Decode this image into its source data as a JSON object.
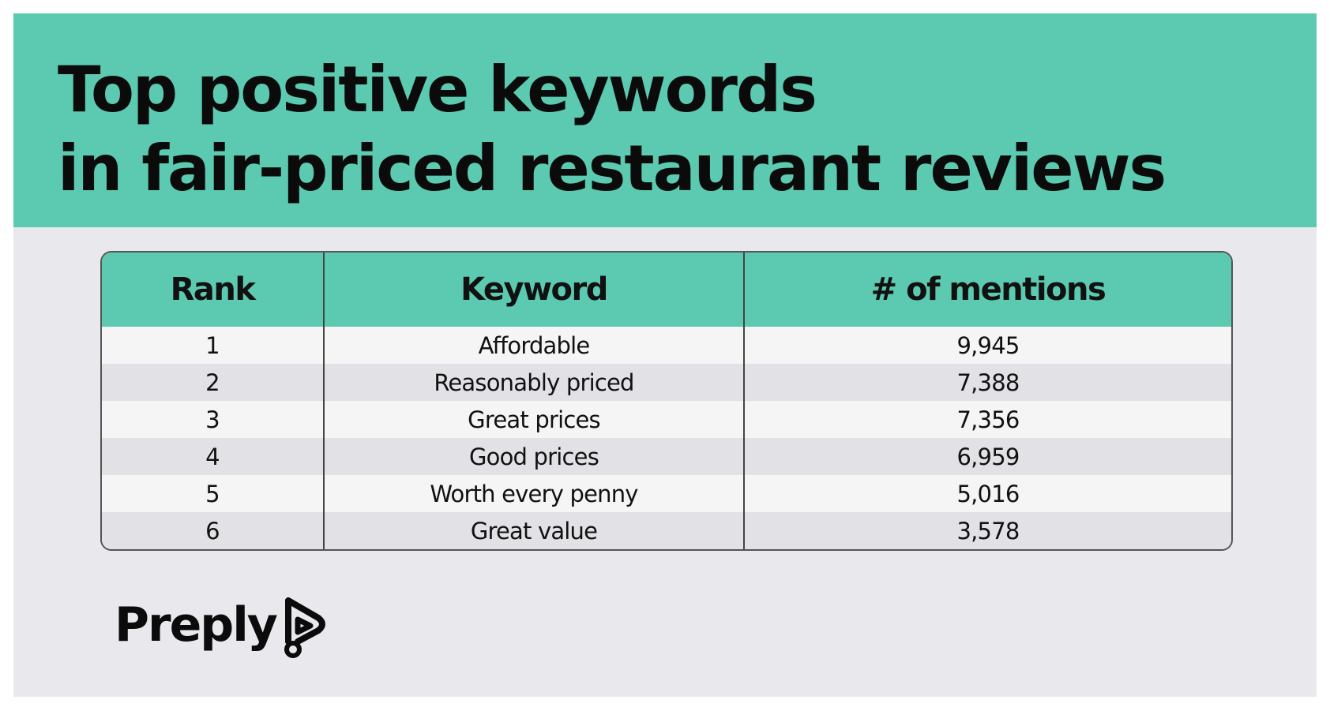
{
  "title": {
    "line1": "Top positive keywords",
    "line2": "in fair-priced restaurant reviews"
  },
  "table": {
    "header": [
      "Rank",
      "Keyword",
      "# of mentions"
    ],
    "rows": [
      [
        "1",
        "Affordable",
        "9,945"
      ],
      [
        "2",
        "Reasonably priced",
        "7,388"
      ],
      [
        "3",
        "Great prices",
        "7,356"
      ],
      [
        "4",
        "Good prices",
        "6,959"
      ],
      [
        "5",
        "Worth every penny",
        "5,016"
      ],
      [
        "6",
        "Great value",
        "3,578"
      ]
    ]
  },
  "logo": {
    "text": "Preply"
  }
}
